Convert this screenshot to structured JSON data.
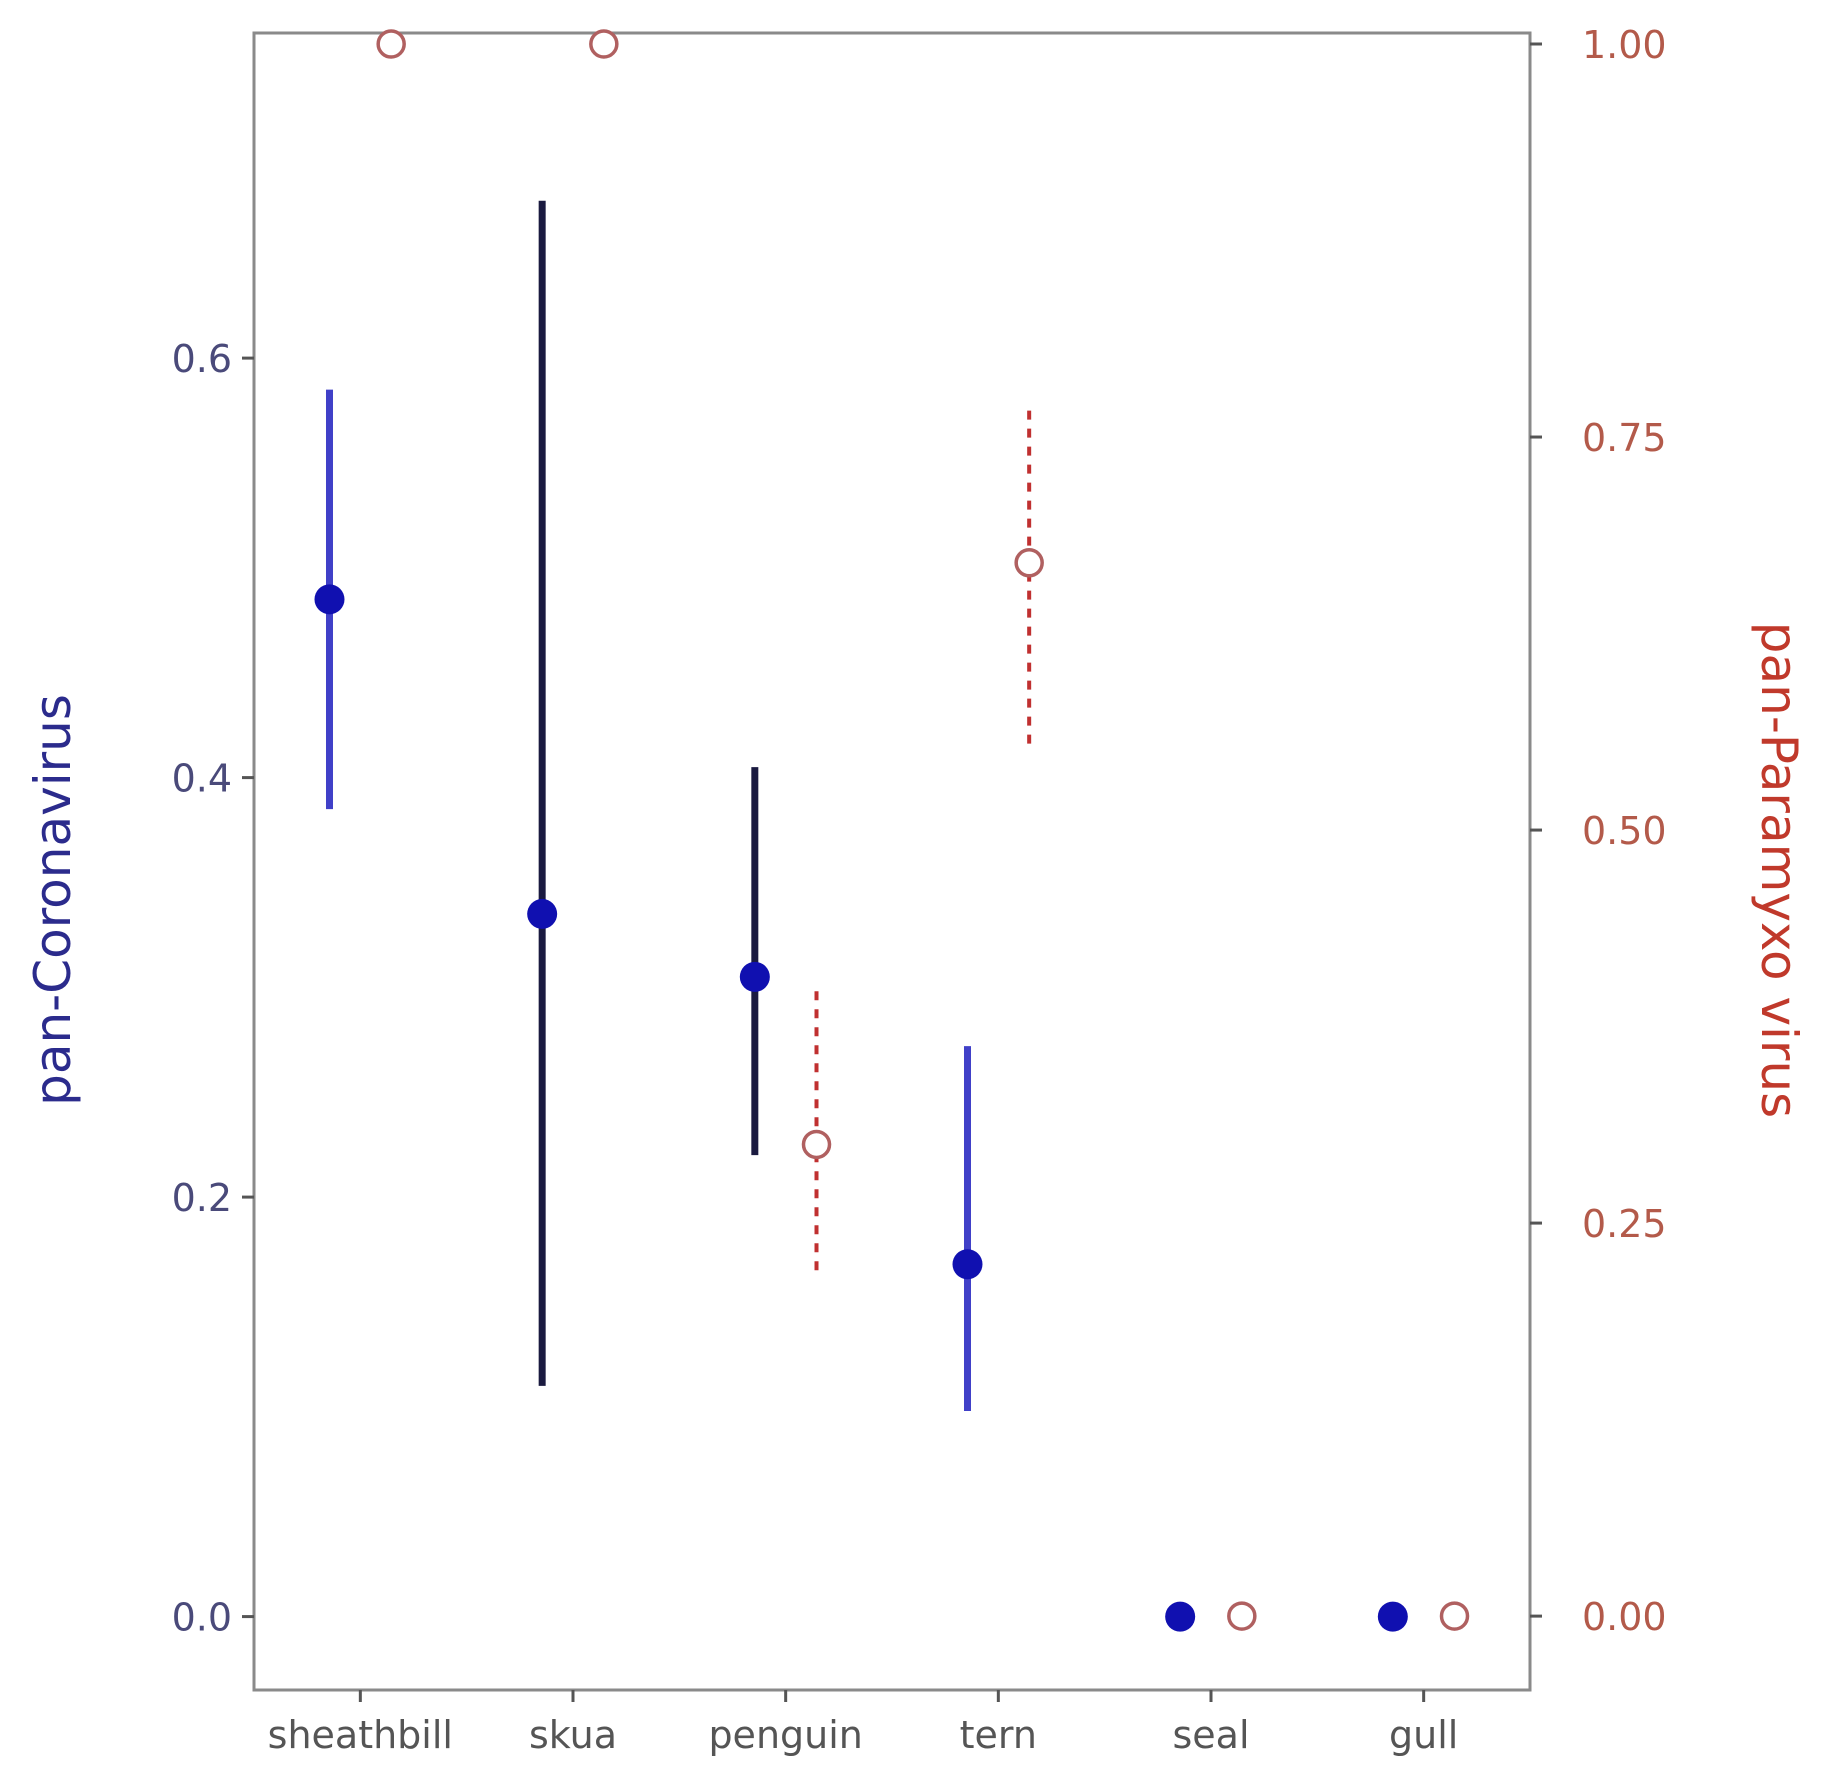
{
  "chart_data": {
    "type": "scatter",
    "categories": [
      "sheathbill",
      "skua",
      "penguin",
      "tern",
      "seal",
      "gull"
    ],
    "y_left": {
      "label": "pan-Coronavirus",
      "ticks": [
        "0.0",
        "0.2",
        "0.4",
        "0.6"
      ],
      "tick_values": [
        0.0,
        0.2,
        0.4,
        0.6
      ],
      "range": [
        -0.035,
        0.755
      ],
      "color": "#2b2b8c"
    },
    "y_right": {
      "label": "pan-Paramyxo virus",
      "ticks": [
        "0.00",
        "0.25",
        "0.50",
        "0.75",
        "1.00"
      ],
      "tick_values": [
        0.0,
        0.25,
        0.5,
        0.75,
        1.0
      ],
      "range": [
        -0.047,
        1.007
      ],
      "color": "#c0392b"
    },
    "series": [
      {
        "axis": "left",
        "marker": "filled-circle",
        "color": "#1010b0",
        "errorbar_style": "solid",
        "points": [
          {
            "category": "sheathbill",
            "value": 0.485,
            "low": 0.385,
            "high": 0.585,
            "errorbar_color": "#4040c8"
          },
          {
            "category": "skua",
            "value": 0.335,
            "low": 0.11,
            "high": 0.675,
            "errorbar_color": "#1a1a40"
          },
          {
            "category": "penguin",
            "value": 0.305,
            "low": 0.22,
            "high": 0.405,
            "errorbar_color": "#1a1a40"
          },
          {
            "category": "tern",
            "value": 0.168,
            "low": 0.098,
            "high": 0.272,
            "errorbar_color": "#4040c8"
          },
          {
            "category": "seal",
            "value": 0.0
          },
          {
            "category": "gull",
            "value": 0.0
          }
        ]
      },
      {
        "axis": "right",
        "marker": "open-circle",
        "color": "#b06060",
        "errorbar_style": "dashed",
        "points": [
          {
            "category": "sheathbill",
            "value": 1.0
          },
          {
            "category": "skua",
            "value": 1.0
          },
          {
            "category": "penguin",
            "value": 0.3,
            "low": 0.22,
            "high": 0.4,
            "errorbar_color": "#c03030"
          },
          {
            "category": "tern",
            "value": 0.67,
            "low": 0.555,
            "high": 0.77,
            "errorbar_color": "#c03030"
          },
          {
            "category": "seal",
            "value": 0.0
          },
          {
            "category": "gull",
            "value": 0.0
          }
        ]
      }
    ],
    "grid": false
  }
}
